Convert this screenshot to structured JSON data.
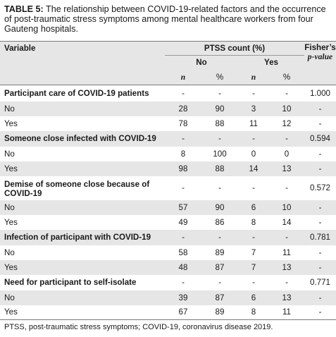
{
  "caption": {
    "label": "TABLE 5:",
    "text": " The relationship between COVID-19-related factors and the occurrence of post-traumatic stress symptoms among mental healthcare workers from four Gauteng hospitals."
  },
  "header": {
    "variable": "Variable",
    "ptss_count": "PTSS count (%)",
    "fisher_line1": "Fisher’s",
    "fisher_line2": "p-value",
    "no": "No",
    "yes": "Yes",
    "n": "n",
    "pct": "%"
  },
  "rows": [
    {
      "label": "Participant care of COVID-19 patients",
      "no_n": "-",
      "no_pct": "-",
      "yes_n": "-",
      "yes_pct": "-",
      "p": "1.000",
      "section": true
    },
    {
      "label": "No",
      "no_n": "28",
      "no_pct": "90",
      "yes_n": "3",
      "yes_pct": "10",
      "p": "-"
    },
    {
      "label": "Yes",
      "no_n": "78",
      "no_pct": "88",
      "yes_n": "11",
      "yes_pct": "12",
      "p": "-"
    },
    {
      "label": "Someone close infected with COVID-19",
      "no_n": "-",
      "no_pct": "-",
      "yes_n": "-",
      "yes_pct": "-",
      "p": "0.594",
      "section": true
    },
    {
      "label": "No",
      "no_n": "8",
      "no_pct": "100",
      "yes_n": "0",
      "yes_pct": "0",
      "p": "-"
    },
    {
      "label": "Yes",
      "no_n": "98",
      "no_pct": "88",
      "yes_n": "14",
      "yes_pct": "13",
      "p": "-"
    },
    {
      "label": "Demise of someone close because of COVID-19",
      "no_n": "-",
      "no_pct": "-",
      "yes_n": "-",
      "yes_pct": "-",
      "p": "0.572",
      "section": true
    },
    {
      "label": "No",
      "no_n": "57",
      "no_pct": "90",
      "yes_n": "6",
      "yes_pct": "10",
      "p": "-"
    },
    {
      "label": "Yes",
      "no_n": "49",
      "no_pct": "86",
      "yes_n": "8",
      "yes_pct": "14",
      "p": "-"
    },
    {
      "label": "Infection of participant with COVID-19",
      "no_n": "-",
      "no_pct": "-",
      "yes_n": "-",
      "yes_pct": "-",
      "p": "0.781",
      "section": true
    },
    {
      "label": "No",
      "no_n": "58",
      "no_pct": "89",
      "yes_n": "7",
      "yes_pct": "11",
      "p": "-"
    },
    {
      "label": "Yes",
      "no_n": "48",
      "no_pct": "87",
      "yes_n": "7",
      "yes_pct": "13",
      "p": "-"
    },
    {
      "label": "Need for participant to self-isolate",
      "no_n": "-",
      "no_pct": "-",
      "yes_n": "-",
      "yes_pct": "-",
      "p": "0.771",
      "section": true
    },
    {
      "label": "No",
      "no_n": "39",
      "no_pct": "87",
      "yes_n": "6",
      "yes_pct": "13",
      "p": "-"
    },
    {
      "label": "Yes",
      "no_n": "67",
      "no_pct": "89",
      "yes_n": "8",
      "yes_pct": "11",
      "p": "-"
    }
  ],
  "footnote": "PTSS, post-traumatic stress symptoms; COVID-19, coronavirus disease 2019."
}
